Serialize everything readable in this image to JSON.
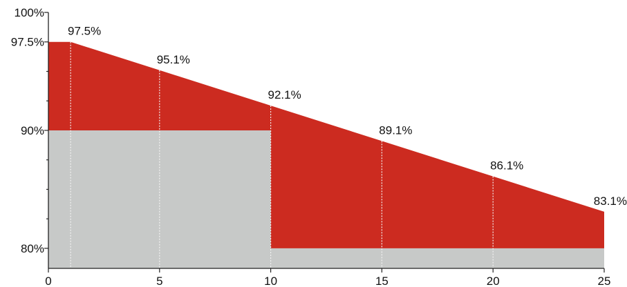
{
  "chart_data": {
    "type": "area",
    "x_ticks": [
      0,
      5,
      10,
      15,
      20,
      25
    ],
    "y_ticks": [
      {
        "value": 80,
        "label": "80%"
      },
      {
        "value": 90,
        "label": "90%"
      },
      {
        "value": 97.5,
        "label": "97.5%"
      },
      {
        "value": 100,
        "label": "100%"
      }
    ],
    "xlim": [
      0,
      25
    ],
    "ylim": [
      78.3,
      100
    ],
    "series": [
      {
        "role": "upper-boundary",
        "color": "#cc2b20",
        "points": [
          [
            0,
            97.5
          ],
          [
            1,
            97.5
          ],
          [
            5,
            95.1
          ],
          [
            10,
            92.1
          ],
          [
            15,
            89.1
          ],
          [
            20,
            86.1
          ],
          [
            25,
            83.1
          ]
        ]
      },
      {
        "role": "lower-floor",
        "color": "#c7c9c8",
        "points": [
          [
            0,
            90
          ],
          [
            10,
            90
          ],
          [
            10,
            80
          ],
          [
            25,
            80
          ]
        ]
      }
    ],
    "data_labels": [
      {
        "x": 1,
        "y": 97.5,
        "label": "97.5%"
      },
      {
        "x": 5,
        "y": 95.1,
        "label": "95.1%"
      },
      {
        "x": 10,
        "y": 92.1,
        "label": "92.1%"
      },
      {
        "x": 15,
        "y": 89.1,
        "label": "89.1%"
      },
      {
        "x": 20,
        "y": 86.1,
        "label": "86.1%"
      },
      {
        "x": 25,
        "y": 83.1,
        "label": "83.1%"
      }
    ],
    "grid": false,
    "legend": "none"
  }
}
